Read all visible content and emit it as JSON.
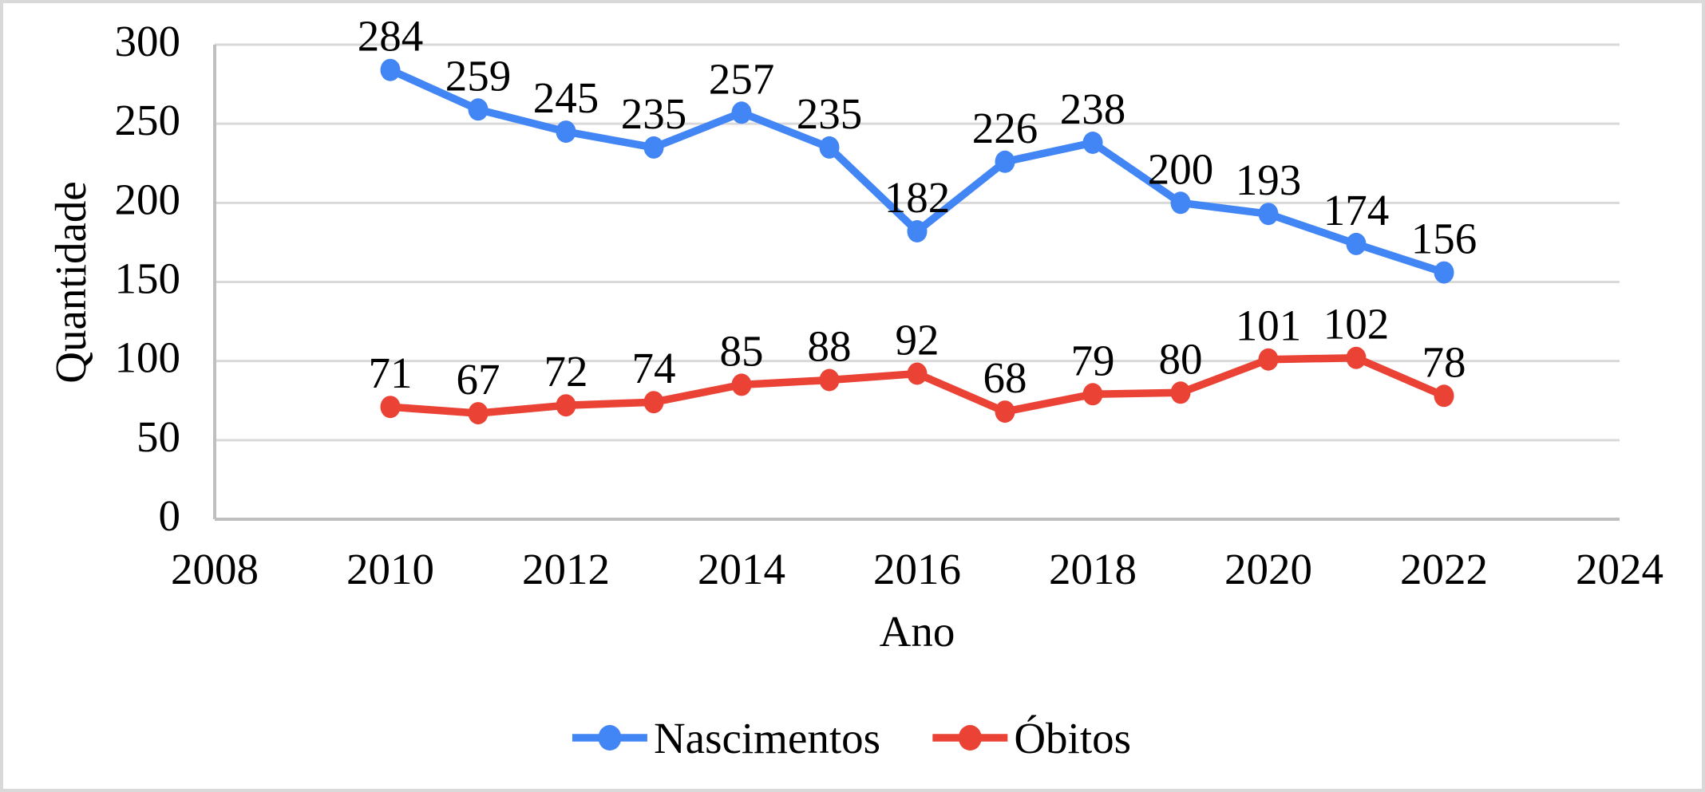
{
  "chart_data": {
    "type": "line",
    "title": "",
    "xlabel": "Ano",
    "ylabel": "Quantidade",
    "x": [
      2010,
      2011,
      2012,
      2013,
      2014,
      2015,
      2016,
      2017,
      2018,
      2019,
      2020,
      2021,
      2022
    ],
    "series": [
      {
        "name": "Nascimentos",
        "color": "#4285F4",
        "values": [
          284,
          259,
          245,
          235,
          257,
          235,
          182,
          226,
          238,
          200,
          193,
          174,
          156
        ]
      },
      {
        "name": "Óbitos",
        "color": "#EA4335",
        "values": [
          71,
          67,
          72,
          74,
          85,
          88,
          92,
          68,
          79,
          80,
          101,
          102,
          78
        ]
      }
    ],
    "xlim": [
      2008,
      2024
    ],
    "ylim": [
      0,
      300
    ],
    "x_ticks": [
      2008,
      2010,
      2012,
      2014,
      2016,
      2018,
      2020,
      2022,
      2024
    ],
    "y_ticks": [
      0,
      50,
      100,
      150,
      200,
      250,
      300
    ],
    "grid": "horizontal",
    "data_labels": "above",
    "legend_position": "bottom"
  },
  "style_colors": {
    "gridline": "#D9D9D9",
    "axis_line": "#BFBFBF",
    "text": "#000000",
    "background": "#FFFFFF",
    "frame_border": "#D9D9D9"
  }
}
